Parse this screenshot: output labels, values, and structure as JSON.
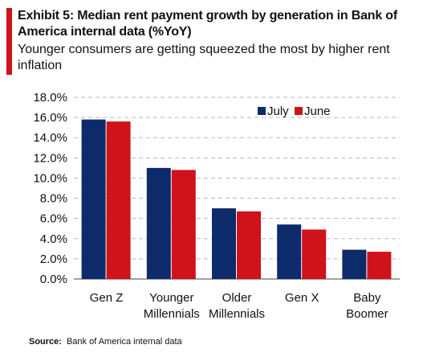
{
  "header": {
    "title": "Exhibit 5: Median rent payment growth by generation in Bank of America internal data (%YoY)",
    "subtitle": "Younger consumers are getting squeezed the most by higher rent inflation"
  },
  "footer": {
    "source_label": "Source:",
    "source_text": "Bank of America internal data"
  },
  "colors": {
    "accent": "#d0121b",
    "july": "#0d2a6b",
    "june": "#d0121b",
    "grid": "#b8b8b8"
  },
  "chart_data": {
    "type": "bar",
    "categories": [
      [
        "Gen Z"
      ],
      [
        "Younger",
        "Millennials"
      ],
      [
        "Older",
        "Millennials"
      ],
      [
        "Gen X"
      ],
      [
        "Baby",
        "Boomer"
      ]
    ],
    "series": [
      {
        "name": "July",
        "values": [
          15.8,
          11.0,
          7.0,
          5.4,
          2.9
        ]
      },
      {
        "name": "June",
        "values": [
          15.6,
          10.8,
          6.7,
          4.9,
          2.7
        ]
      }
    ],
    "ylim": [
      0,
      18
    ],
    "yticks": [
      "0.0%",
      "2.0%",
      "4.0%",
      "6.0%",
      "8.0%",
      "10.0%",
      "12.0%",
      "14.0%",
      "16.0%",
      "18.0%"
    ],
    "ytick_values": [
      0,
      2,
      4,
      6,
      8,
      10,
      12,
      14,
      16,
      18
    ],
    "grid": true,
    "legend": "top-right"
  }
}
